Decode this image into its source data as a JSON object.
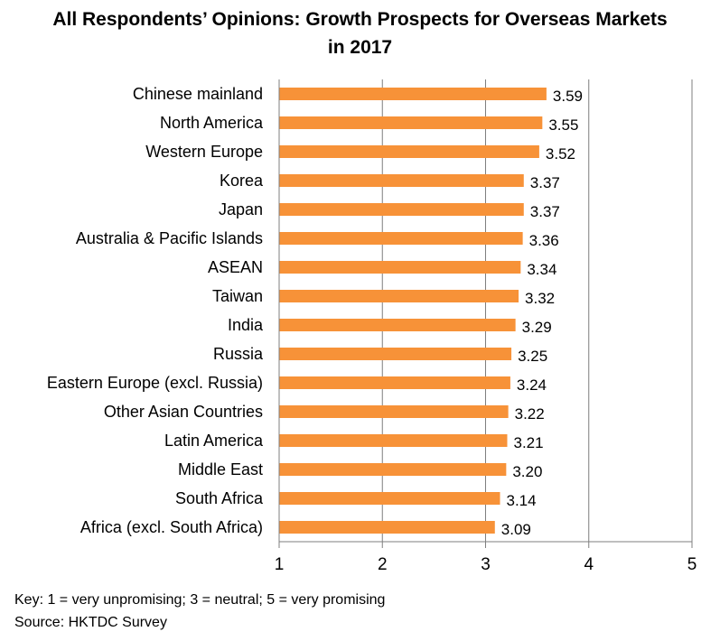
{
  "chart_data": {
    "type": "bar",
    "orientation": "horizontal",
    "title_line1": "All Respondents’ Opinions: Growth Prospects for Overseas Markets",
    "title_line2": "in 2017",
    "categories": [
      "Chinese mainland",
      "North America",
      "Western Europe",
      "Korea",
      "Japan",
      "Australia & Pacific Islands",
      "ASEAN",
      "Taiwan",
      "India",
      "Russia",
      "Eastern Europe (excl. Russia)",
      "Other Asian Countries",
      "Latin America",
      "Middle East",
      "South Africa",
      "Africa (excl. South Africa)"
    ],
    "values": [
      3.59,
      3.55,
      3.52,
      3.37,
      3.37,
      3.36,
      3.34,
      3.32,
      3.29,
      3.25,
      3.24,
      3.22,
      3.21,
      3.2,
      3.14,
      3.09
    ],
    "value_labels": [
      "3.59",
      "3.55",
      "3.52",
      "3.37",
      "3.37",
      "3.36",
      "3.34",
      "3.32",
      "3.29",
      "3.25",
      "3.24",
      "3.22",
      "3.21",
      "3.20",
      "3.14",
      "3.09"
    ],
    "xlim": [
      1,
      5
    ],
    "xticks": [
      "1",
      "2",
      "3",
      "4",
      "5"
    ],
    "grid": "vertical",
    "bar_color": "#f79238"
  },
  "notes": {
    "key": "Key: 1 = very unpromising; 3 = neutral;  5 = very promising",
    "source": "Source: HKTDC Survey"
  }
}
